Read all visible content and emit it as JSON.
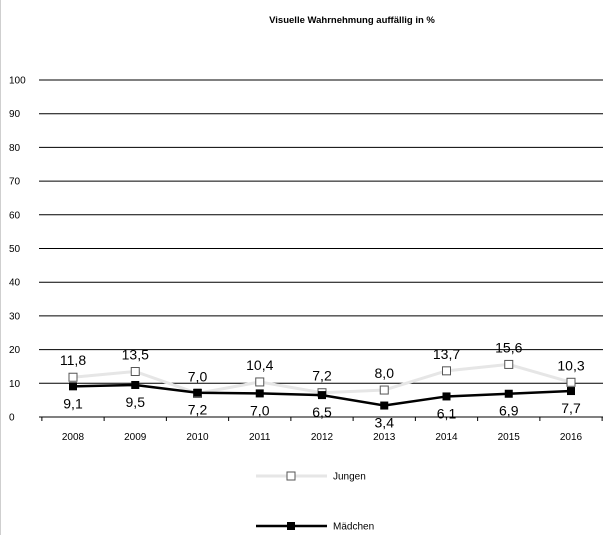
{
  "chart_data": {
    "type": "line",
    "title": "Visuelle Wahrnehmung auffällig in %",
    "xlabel": "",
    "ylabel": "",
    "categories": [
      "2008",
      "2009",
      "2010",
      "2011",
      "2012",
      "2013",
      "2014",
      "2015",
      "2016"
    ],
    "ylim": [
      0,
      100
    ],
    "yticks": [
      "0",
      "10",
      "20",
      "30",
      "40",
      "50",
      "60",
      "70",
      "80",
      "90",
      "100"
    ],
    "grid": true,
    "legend_position": "bottom",
    "series": [
      {
        "name": "Jungen",
        "color": "#e6e6e6",
        "marker": "hollow-square",
        "values": [
          11.8,
          13.5,
          7.0,
          10.4,
          7.2,
          8.0,
          13.7,
          15.6,
          10.3
        ],
        "labels": [
          "11,8",
          "13,5",
          "7,0",
          "10,4",
          "7,2",
          "8,0",
          "13,7",
          "15,6",
          "10,3"
        ]
      },
      {
        "name": "Mädchen",
        "color": "#000000",
        "marker": "filled-square",
        "values": [
          9.1,
          9.5,
          7.2,
          7.0,
          6.5,
          3.4,
          6.1,
          6.9,
          7.7
        ],
        "labels": [
          "9,1",
          "9,5",
          "7,2",
          "7,0",
          "6,5",
          "3,4",
          "6,1",
          "6,9",
          "7,7"
        ]
      }
    ]
  }
}
